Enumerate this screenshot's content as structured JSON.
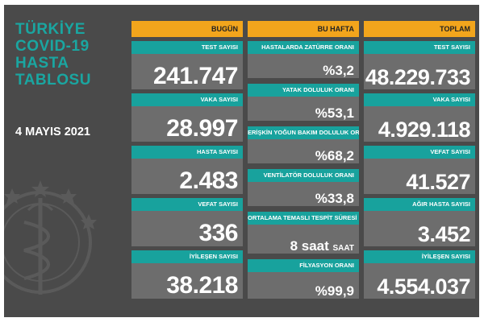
{
  "title_lines": [
    "TÜRKİYE",
    "COVID-19",
    "HASTA",
    "TABLOSU"
  ],
  "date": "4 MAYIS 2021",
  "columns": {
    "bugun": {
      "header": "BUGÜN",
      "cards": [
        {
          "label": "TEST SAYISI",
          "value": "241.747"
        },
        {
          "label": "VAKA SAYISI",
          "value": "28.997"
        },
        {
          "label": "HASTA SAYISI",
          "value": "2.483"
        },
        {
          "label": "VEFAT SAYISI",
          "value": "336"
        },
        {
          "label": "İYİLEŞEN SAYISI",
          "value": "38.218"
        }
      ]
    },
    "bu_hafta": {
      "header": "BU HAFTA",
      "cards": [
        {
          "label": "HASTALARDA ZATÜRRE ORANI",
          "value": "%3,2"
        },
        {
          "label": "YATAK DOLULUK ORANI",
          "value": "%53,1"
        },
        {
          "label": "ERİŞKİN YOĞUN BAKIM DOLULUK ORANI",
          "value": "%68,2"
        },
        {
          "label": "VENTİLATÖR DOLULUK ORANI",
          "value": "%33,8"
        },
        {
          "label": "ORTALAMA TEMASLI TESPİT SÜRESİ",
          "value": "8 saat",
          "unit": "SAAT"
        },
        {
          "label": "FİLYASYON ORANI",
          "value": "%99,9"
        }
      ]
    },
    "toplam": {
      "header": "TOPLAM",
      "cards": [
        {
          "label": "TEST SAYISI",
          "value": "48.229.733"
        },
        {
          "label": "VAKA SAYISI",
          "value": "4.929.118"
        },
        {
          "label": "VEFAT SAYISI",
          "value": "41.527"
        },
        {
          "label": "AĞIR HASTA SAYISI",
          "value": "3.452"
        },
        {
          "label": "İYİLEŞEN SAYISI",
          "value": "4.554.037"
        }
      ]
    }
  },
  "colors": {
    "background": "#4a4a4a",
    "header_orange": "#f2a51c",
    "label_teal": "#18a29d",
    "value_gray": "#6d6d6d",
    "title_teal": "#1aa6a1"
  },
  "icons": {
    "watermark": "ministry-emblem-icon"
  }
}
